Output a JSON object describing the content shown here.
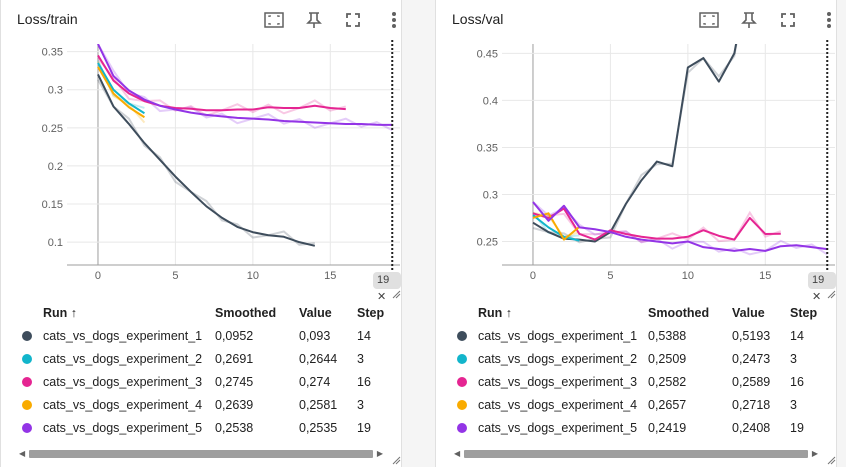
{
  "panels": [
    {
      "id": "train",
      "title": "Loss/train",
      "step_badge": "19",
      "headers": {
        "run": "Run ↑",
        "smoothed": "Smoothed",
        "value": "Value",
        "step": "Step"
      },
      "rows": [
        {
          "name": "cats_vs_dogs_experiment_1",
          "smoothed": "0,0952",
          "value": "0,093",
          "step": "14",
          "color": "#3e4d5c"
        },
        {
          "name": "cats_vs_dogs_experiment_2",
          "smoothed": "0,2691",
          "value": "0,2644",
          "step": "3",
          "color": "#12b5cb"
        },
        {
          "name": "cats_vs_dogs_experiment_3",
          "smoothed": "0,2745",
          "value": "0,274",
          "step": "16",
          "color": "#e52592"
        },
        {
          "name": "cats_vs_dogs_experiment_4",
          "smoothed": "0,2639",
          "value": "0,2581",
          "step": "3",
          "color": "#f9ab00"
        },
        {
          "name": "cats_vs_dogs_experiment_5",
          "smoothed": "0,2538",
          "value": "0,2535",
          "step": "19",
          "color": "#9334e6"
        }
      ]
    },
    {
      "id": "val",
      "title": "Loss/val",
      "step_badge": "19",
      "headers": {
        "run": "Run ↑",
        "smoothed": "Smoothed",
        "value": "Value",
        "step": "Step"
      },
      "rows": [
        {
          "name": "cats_vs_dogs_experiment_1",
          "smoothed": "0,5388",
          "value": "0,5193",
          "step": "14",
          "color": "#3e4d5c"
        },
        {
          "name": "cats_vs_dogs_experiment_2",
          "smoothed": "0,2509",
          "value": "0,2473",
          "step": "3",
          "color": "#12b5cb"
        },
        {
          "name": "cats_vs_dogs_experiment_3",
          "smoothed": "0,2582",
          "value": "0,2589",
          "step": "16",
          "color": "#e52592"
        },
        {
          "name": "cats_vs_dogs_experiment_4",
          "smoothed": "0,2657",
          "value": "0,2718",
          "step": "3",
          "color": "#f9ab00"
        },
        {
          "name": "cats_vs_dogs_experiment_5",
          "smoothed": "0,2419",
          "value": "0,2408",
          "step": "19",
          "color": "#9334e6"
        }
      ]
    }
  ],
  "chart_data": [
    {
      "type": "line",
      "title": "Loss/train",
      "xlabel": "",
      "ylabel": "",
      "xlim": [
        -2,
        19.5
      ],
      "ylim": [
        0.07,
        0.36
      ],
      "x_ticks": [
        0,
        5,
        10,
        15
      ],
      "y_ticks": [
        0.1,
        0.15,
        0.2,
        0.25,
        0.3,
        0.35
      ],
      "y_tick_labels": [
        "0.1",
        "0.15",
        "0.2",
        "0.25",
        "0.3",
        "0.35"
      ],
      "marker_step": 19,
      "grid": true,
      "series": [
        {
          "name": "cats_vs_dogs_experiment_1",
          "color": "#3e4d5c",
          "x": [
            0,
            1,
            2,
            3,
            4,
            5,
            6,
            7,
            8,
            9,
            10,
            11,
            12,
            13,
            14
          ],
          "y": [
            0.32,
            0.278,
            0.255,
            0.23,
            0.208,
            0.186,
            0.166,
            0.147,
            0.132,
            0.12,
            0.113,
            0.109,
            0.107,
            0.1,
            0.0952
          ]
        },
        {
          "name": "cats_vs_dogs_experiment_2",
          "color": "#12b5cb",
          "x": [
            0,
            1,
            2,
            3
          ],
          "y": [
            0.335,
            0.3,
            0.282,
            0.2691
          ]
        },
        {
          "name": "cats_vs_dogs_experiment_3",
          "color": "#e52592",
          "x": [
            0,
            1,
            2,
            3,
            4,
            5,
            6,
            7,
            8,
            9,
            10,
            11,
            12,
            13,
            14,
            15,
            16
          ],
          "y": [
            0.345,
            0.312,
            0.295,
            0.285,
            0.279,
            0.276,
            0.275,
            0.273,
            0.273,
            0.274,
            0.274,
            0.277,
            0.276,
            0.276,
            0.279,
            0.276,
            0.2745
          ]
        },
        {
          "name": "cats_vs_dogs_experiment_4",
          "color": "#f9ab00",
          "x": [
            0,
            1,
            2,
            3
          ],
          "y": [
            0.33,
            0.295,
            0.277,
            0.2639
          ]
        },
        {
          "name": "cats_vs_dogs_experiment_5",
          "color": "#9334e6",
          "x": [
            0,
            1,
            2,
            3,
            4,
            5,
            6,
            7,
            8,
            9,
            10,
            11,
            12,
            13,
            14,
            15,
            16,
            17,
            18,
            19
          ],
          "y": [
            0.36,
            0.318,
            0.299,
            0.287,
            0.279,
            0.274,
            0.27,
            0.267,
            0.265,
            0.263,
            0.262,
            0.261,
            0.259,
            0.258,
            0.257,
            0.256,
            0.255,
            0.255,
            0.254,
            0.2538
          ]
        }
      ]
    },
    {
      "type": "line",
      "title": "Loss/val",
      "xlabel": "",
      "ylabel": "",
      "xlim": [
        -2,
        19.5
      ],
      "ylim": [
        0.225,
        0.46
      ],
      "x_ticks": [
        0,
        5,
        10,
        15
      ],
      "y_ticks": [
        0.25,
        0.3,
        0.35,
        0.4,
        0.45
      ],
      "y_tick_labels": [
        "0.25",
        "0.3",
        "0.35",
        "0.4",
        "0.45"
      ],
      "marker_step": 19,
      "grid": true,
      "series": [
        {
          "name": "cats_vs_dogs_experiment_1",
          "color": "#3e4d5c",
          "x": [
            0,
            1,
            2,
            3,
            4,
            5,
            6,
            7,
            8,
            9,
            10,
            11,
            12,
            13,
            14
          ],
          "y": [
            0.27,
            0.26,
            0.253,
            0.252,
            0.25,
            0.26,
            0.29,
            0.315,
            0.335,
            0.33,
            0.435,
            0.445,
            0.42,
            0.45,
            0.5388
          ]
        },
        {
          "name": "cats_vs_dogs_experiment_2",
          "color": "#12b5cb",
          "x": [
            0,
            1,
            2,
            3
          ],
          "y": [
            0.278,
            0.265,
            0.255,
            0.2509
          ]
        },
        {
          "name": "cats_vs_dogs_experiment_3",
          "color": "#e52592",
          "x": [
            0,
            1,
            2,
            3,
            4,
            5,
            6,
            7,
            8,
            9,
            10,
            11,
            12,
            13,
            14,
            15,
            16
          ],
          "y": [
            0.28,
            0.275,
            0.285,
            0.258,
            0.252,
            0.262,
            0.258,
            0.255,
            0.253,
            0.253,
            0.255,
            0.262,
            0.256,
            0.252,
            0.275,
            0.258,
            0.2582
          ]
        },
        {
          "name": "cats_vs_dogs_experiment_4",
          "color": "#f9ab00",
          "x": [
            0,
            1,
            2,
            3
          ],
          "y": [
            0.275,
            0.28,
            0.252,
            0.2657
          ]
        },
        {
          "name": "cats_vs_dogs_experiment_5",
          "color": "#9334e6",
          "x": [
            0,
            1,
            2,
            3,
            4,
            5,
            6,
            7,
            8,
            9,
            10,
            11,
            12,
            13,
            14,
            15,
            16,
            17,
            18,
            19
          ],
          "y": [
            0.292,
            0.272,
            0.288,
            0.265,
            0.263,
            0.26,
            0.255,
            0.252,
            0.25,
            0.248,
            0.25,
            0.244,
            0.242,
            0.24,
            0.242,
            0.24,
            0.245,
            0.246,
            0.244,
            0.2419
          ]
        }
      ]
    }
  ]
}
